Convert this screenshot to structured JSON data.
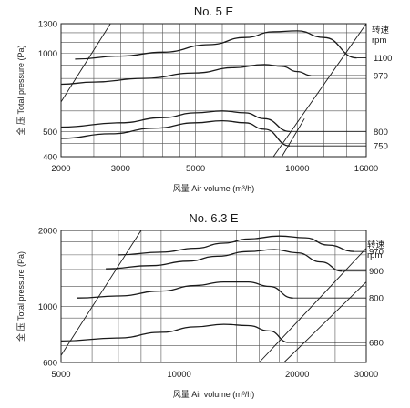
{
  "chart_data": [
    {
      "type": "line",
      "title": "No. 5 E",
      "xlabel": "风量 Air volume (m³/h)",
      "ylabel": "全 压 Total pressure (Pa)",
      "x_scale": "log",
      "y_scale": "log",
      "xlim": [
        2000,
        16000
      ],
      "ylim": [
        400,
        1300
      ],
      "x_ticks": [
        2000,
        3000,
        5000,
        10000,
        16000
      ],
      "x_tick_labels": [
        "2000",
        "3000",
        "5000",
        "10000",
        "16000"
      ],
      "y_ticks": [
        400,
        500,
        1000,
        1300
      ],
      "y_tick_labels": [
        "400",
        "500",
        "1000",
        "1300"
      ],
      "rpm_header": [
        "转速",
        "rpm"
      ],
      "series": [
        {
          "name": "1100",
          "x": [
            2200,
            3000,
            4000,
            5500,
            7000,
            8500,
            10000,
            12000,
            15000
          ],
          "y": [
            950,
            975,
            1010,
            1080,
            1150,
            1210,
            1220,
            1150,
            960
          ]
        },
        {
          "name": "970",
          "x": [
            2000,
            2500,
            3500,
            5000,
            6500,
            8000,
            9000,
            10000,
            11000
          ],
          "y": [
            760,
            775,
            800,
            840,
            880,
            905,
            890,
            850,
            820
          ]
        },
        {
          "name": "800",
          "x": [
            2000,
            3000,
            4000,
            5000,
            6000,
            7000,
            8000,
            9500
          ],
          "y": [
            520,
            540,
            565,
            590,
            600,
            590,
            560,
            500
          ]
        },
        {
          "name": "750",
          "x": [
            2000,
            2800,
            3800,
            5000,
            6000,
            7000,
            8000,
            9500
          ],
          "y": [
            470,
            490,
            515,
            540,
            550,
            540,
            510,
            440
          ]
        }
      ]
    },
    {
      "type": "line",
      "title": "No. 6.3 E",
      "xlabel": "风量 Air volume (m³/h)",
      "ylabel": "全 压 Total pressure (Pa)",
      "x_scale": "log",
      "y_scale": "log",
      "xlim": [
        5000,
        30000
      ],
      "ylim": [
        600,
        2000
      ],
      "x_ticks": [
        5000,
        10000,
        20000,
        30000
      ],
      "x_tick_labels": [
        "5000",
        "10000",
        "20000",
        "30000"
      ],
      "y_ticks": [
        600,
        1000,
        2000
      ],
      "y_tick_labels": [
        "600",
        "1000",
        "2000"
      ],
      "rpm_header": [
        "转速",
        "rpm"
      ],
      "series": [
        {
          "name": "970",
          "x": [
            7000,
            9000,
            11000,
            13000,
            15000,
            18000,
            21000,
            24000,
            28000
          ],
          "y": [
            1600,
            1640,
            1700,
            1780,
            1850,
            1900,
            1870,
            1750,
            1650
          ]
        },
        {
          "name": "900",
          "x": [
            6500,
            8500,
            10500,
            12500,
            15000,
            17500,
            20000,
            23000,
            26000
          ],
          "y": [
            1410,
            1450,
            1510,
            1580,
            1650,
            1680,
            1630,
            1500,
            1380
          ]
        },
        {
          "name": "800",
          "x": [
            5500,
            7000,
            9000,
            11000,
            13000,
            15000,
            17000,
            19500
          ],
          "y": [
            1080,
            1100,
            1150,
            1210,
            1250,
            1250,
            1200,
            1080
          ]
        },
        {
          "name": "680",
          "x": [
            5000,
            7000,
            9000,
            11000,
            13000,
            15000,
            17000,
            19000
          ],
          "y": [
            730,
            750,
            790,
            830,
            850,
            840,
            800,
            720
          ]
        }
      ]
    }
  ]
}
